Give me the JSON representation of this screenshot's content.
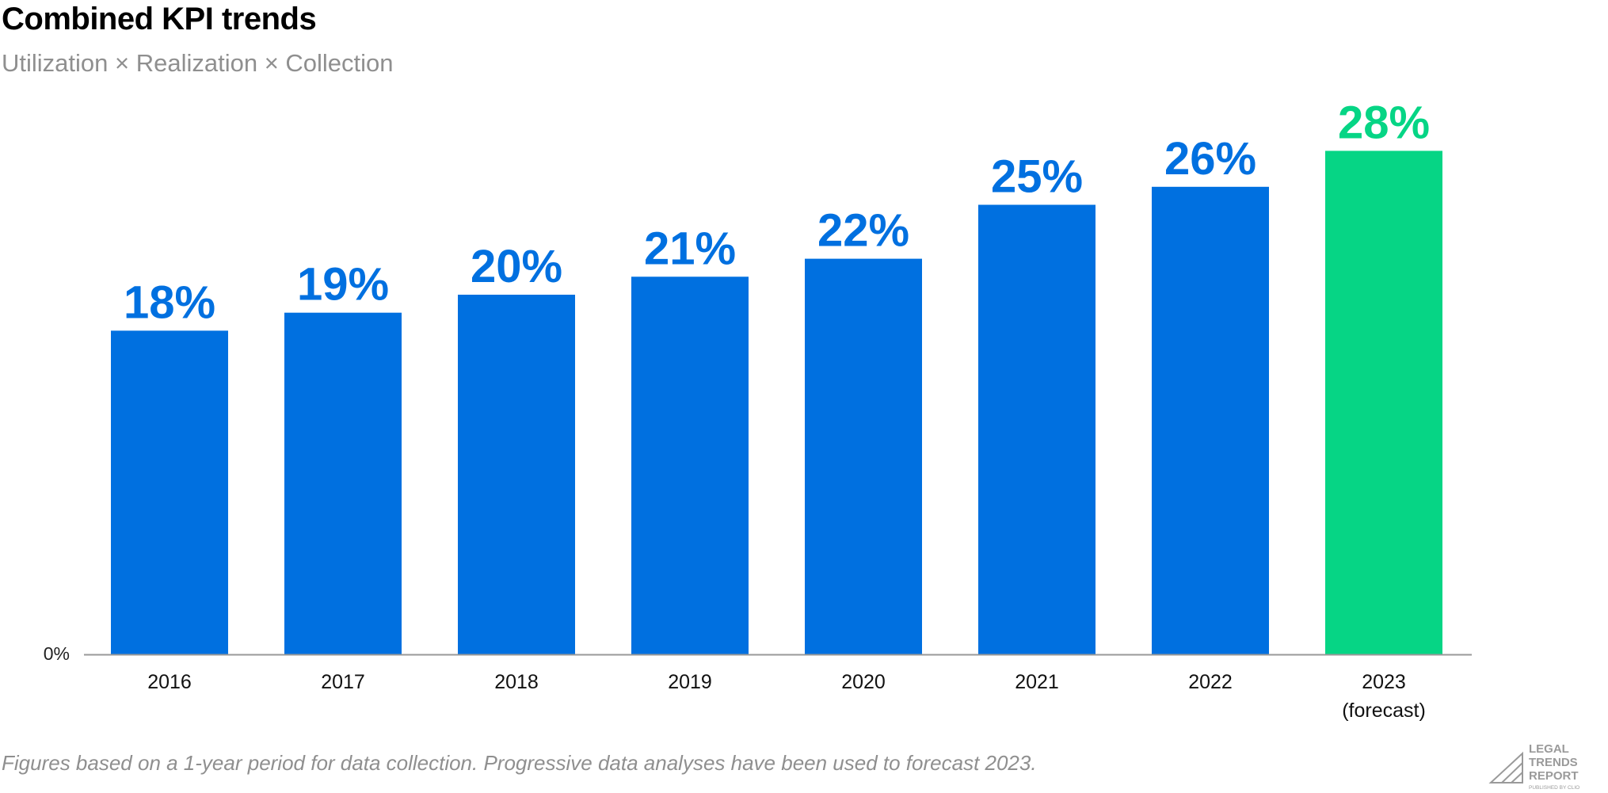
{
  "header": {
    "title": "Combined KPI trends",
    "subtitle": "Utilization × Realization × Collection"
  },
  "footnote": "Figures based on a 1-year period for data collection. Progressive data analyses have been used to forecast 2023.",
  "logo": {
    "lines": [
      "LEGAL",
      "TRENDS",
      "REPORT"
    ],
    "tagline": "PUBLISHED BY CLIO"
  },
  "colors": {
    "bar": "#0070E0",
    "forecast_bar": "#06D585",
    "axis": "#999999",
    "text": "#000000",
    "muted": "#8f8f8f"
  },
  "chart_data": {
    "type": "bar",
    "categories": [
      "2016",
      "2017",
      "2018",
      "2019",
      "2020",
      "2021",
      "2022",
      "2023\n(forecast)"
    ],
    "values": [
      18,
      19,
      20,
      21,
      22,
      25,
      26,
      28
    ],
    "value_labels": [
      "18%",
      "19%",
      "20%",
      "21%",
      "22%",
      "25%",
      "26%",
      "28%"
    ],
    "highlight": [
      false,
      false,
      false,
      false,
      false,
      false,
      false,
      true
    ],
    "yaxis_tick_label": "0%",
    "ylim": [
      0,
      28
    ],
    "grid": false,
    "legend": "none"
  }
}
